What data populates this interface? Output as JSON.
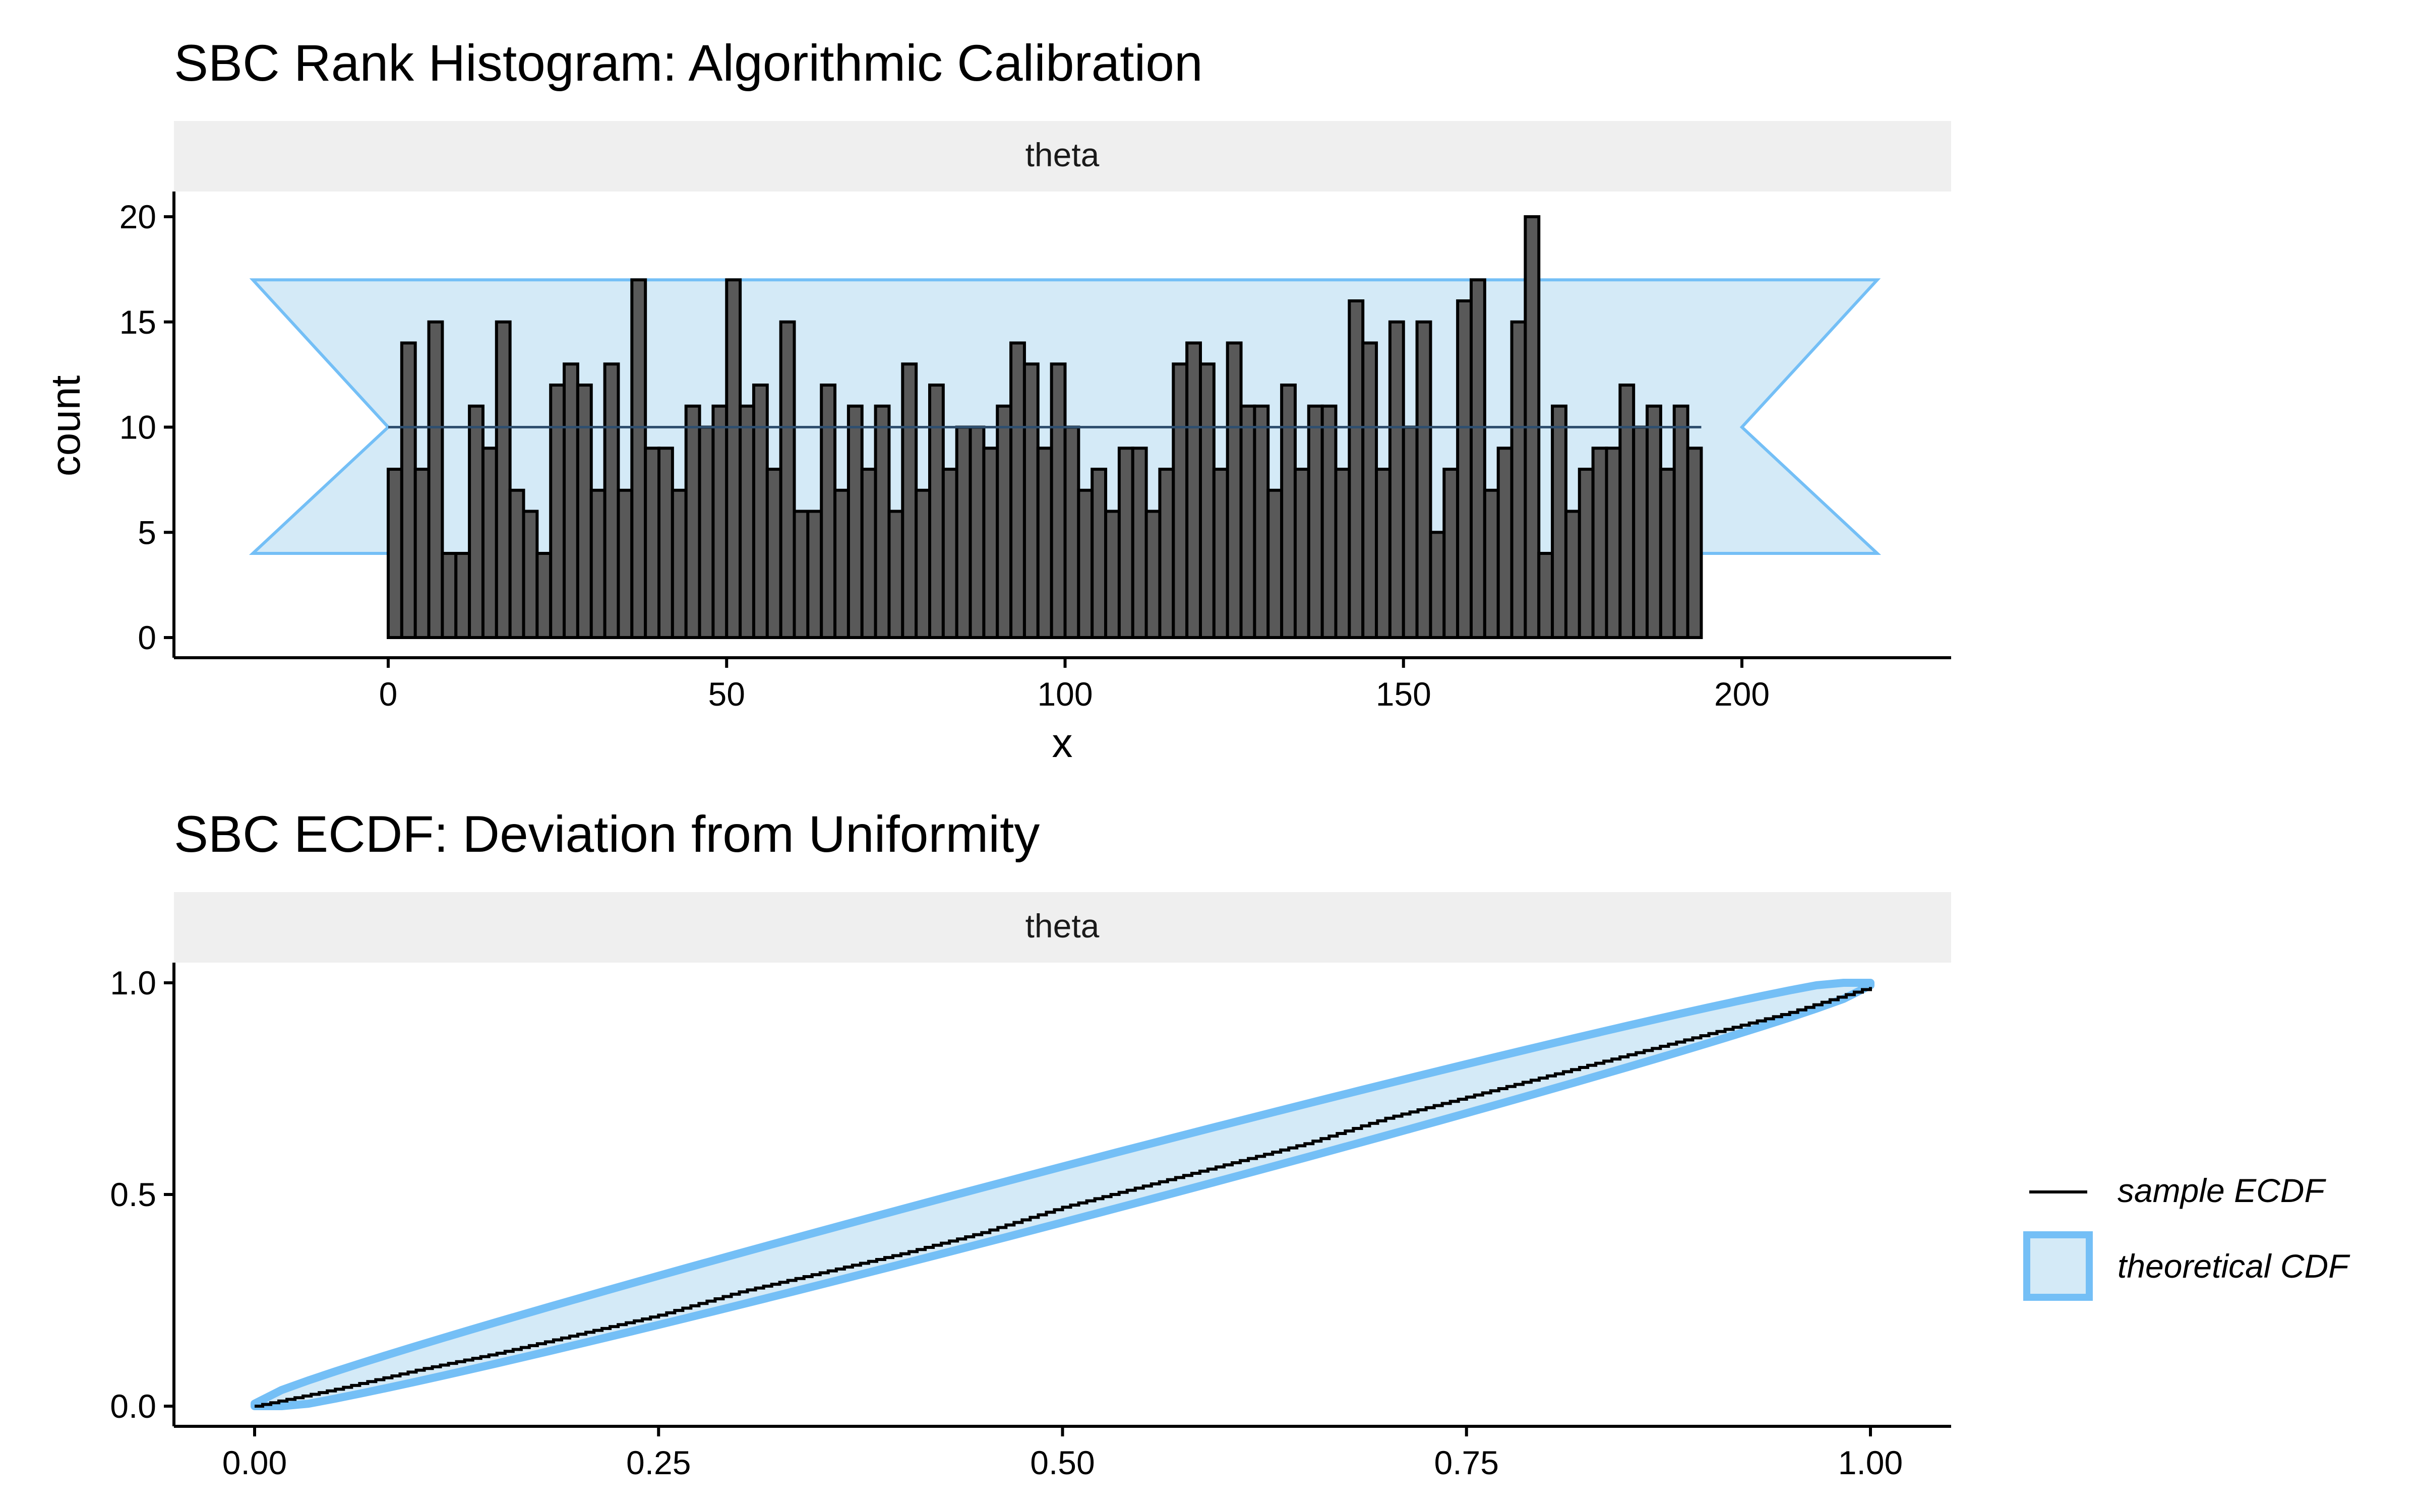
{
  "chart_data": [
    {
      "type": "bar",
      "title": "SBC Rank Histogram: Algorithmic Calibration",
      "facet_label": "theta",
      "xlabel": "x",
      "ylabel": "count",
      "xlim": [
        -20,
        220
      ],
      "ylim": [
        0,
        20
      ],
      "x_ticks": [
        0,
        50,
        100,
        150,
        200
      ],
      "y_ticks": [
        0,
        5,
        10,
        15,
        20
      ],
      "grid": false,
      "bins_start": 0,
      "bin_width": 2,
      "counts": [
        8,
        14,
        8,
        15,
        4,
        4,
        11,
        9,
        15,
        7,
        6,
        4,
        12,
        13,
        12,
        7,
        13,
        7,
        17,
        9,
        9,
        7,
        11,
        10,
        11,
        17,
        11,
        12,
        8,
        15,
        6,
        6,
        12,
        7,
        11,
        8,
        11,
        6,
        13,
        7,
        12,
        8,
        10,
        10,
        9,
        11,
        14,
        13,
        9,
        13,
        10,
        7,
        8,
        6,
        9,
        9,
        6,
        8,
        13,
        14,
        13,
        8,
        14,
        11,
        11,
        7,
        12,
        8,
        11,
        11,
        8,
        16,
        14,
        8,
        15,
        10,
        15,
        5,
        8,
        16,
        17,
        7,
        9,
        15,
        20,
        4,
        11,
        6,
        8,
        9,
        9,
        12,
        10,
        11,
        8,
        11,
        9
      ],
      "expected_count": 10,
      "band": {
        "lower": 4,
        "upper": 17,
        "apex_lower_x": 0,
        "apex_upper_x": 200
      },
      "colors": {
        "bar_fill": "#595959",
        "bar_edge": "#000000",
        "band_fill": "#d4eaf7",
        "band_edge": "#74bff6",
        "mean_line": "#2f4f6f",
        "strip": "#efefef"
      }
    },
    {
      "type": "line",
      "title": "SBC ECDF: Deviation from Uniformity",
      "facet_label": "theta",
      "xlim": [
        0,
        1
      ],
      "ylim": [
        0,
        1
      ],
      "x_ticks": [
        "0.00",
        "0.25",
        "0.50",
        "0.75",
        "1.00"
      ],
      "y_ticks": [
        "0.0",
        "0.5",
        "1.0"
      ],
      "grid": false,
      "series": [
        {
          "name": "sample ECDF",
          "x": [
            0,
            0.05,
            0.1,
            0.15,
            0.2,
            0.25,
            0.3,
            0.35,
            0.4,
            0.45,
            0.5,
            0.55,
            0.6,
            0.65,
            0.7,
            0.75,
            0.8,
            0.85,
            0.9,
            0.95,
            1.0
          ],
          "y": [
            0,
            0.04,
            0.085,
            0.125,
            0.17,
            0.215,
            0.27,
            0.315,
            0.36,
            0.41,
            0.47,
            0.52,
            0.57,
            0.62,
            0.68,
            0.73,
            0.78,
            0.83,
            0.88,
            0.93,
            0.99
          ]
        },
        {
          "name": "theoretical CDF",
          "band_halfwidth_max": 0.06
        }
      ],
      "legend_position": "right",
      "legend": [
        {
          "label": "sample ECDF"
        },
        {
          "label": "theoretical CDF"
        }
      ],
      "colors": {
        "line": "#000000",
        "band_fill": "#d4eaf7",
        "band_edge": "#74bff6",
        "strip": "#efefef"
      }
    }
  ]
}
